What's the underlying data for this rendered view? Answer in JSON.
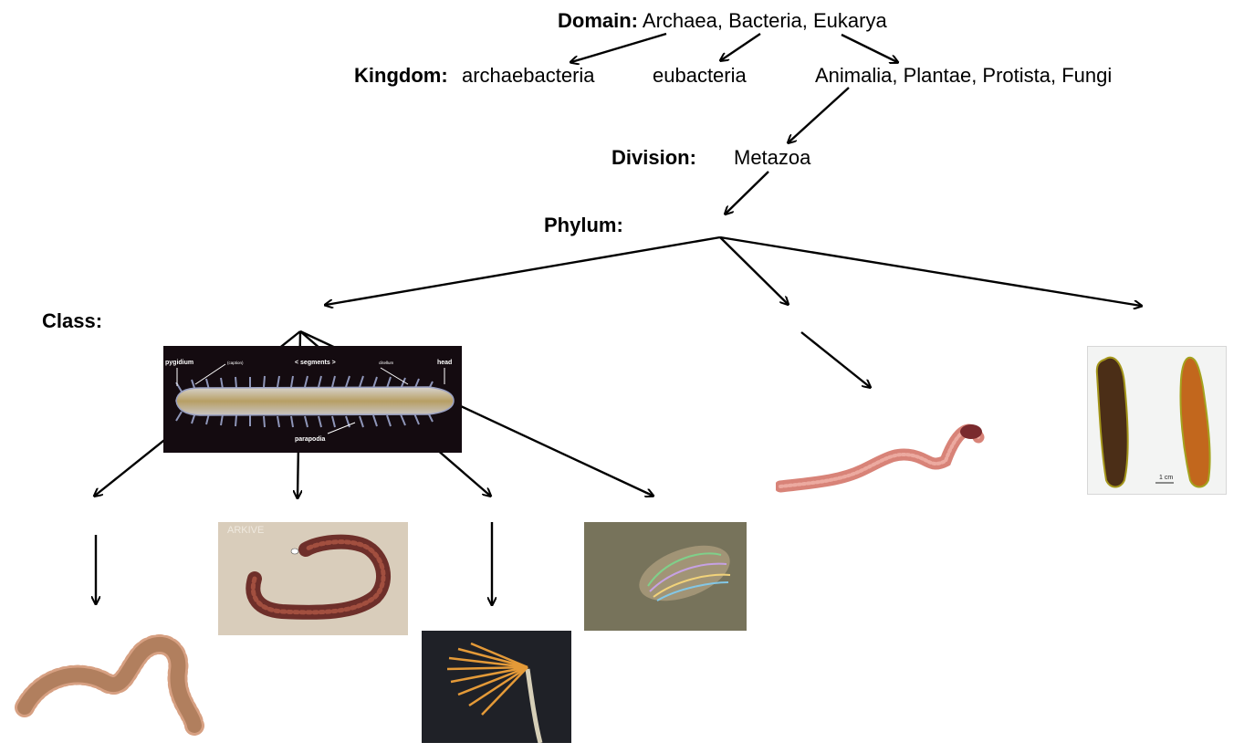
{
  "domain_line": {
    "label": "Domain:",
    "value": "Archaea, Bacteria, Eukarya"
  },
  "kingdom_line": {
    "label": "Kingdom:",
    "items": [
      "archaebacteria",
      "eubacteria",
      "Animalia, Plantae, Protista, Fungi"
    ]
  },
  "division_line": {
    "label": "Division:",
    "value": "Metazoa"
  },
  "phylum_line": {
    "label": "Phylum:"
  },
  "class_line": {
    "label": "Class:"
  },
  "polychaete_diagram": {
    "labels": [
      "pygidium",
      "(caption)",
      "< segments >",
      "clitellum",
      "head",
      "parapodia"
    ]
  },
  "leech_scale": "1 cm",
  "watermark": "ARKIVE"
}
